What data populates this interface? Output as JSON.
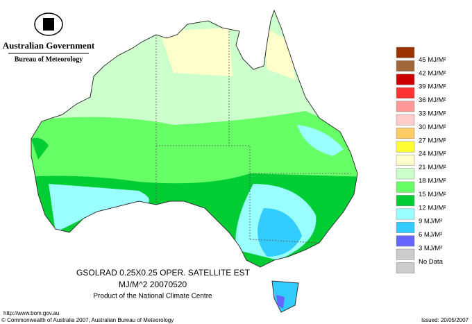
{
  "header": {
    "title": "Australian Government",
    "subtitle": "Bureau of Meteorology"
  },
  "map": {
    "title": "GSOLRAD    0.25X0.25  OPER. SATELLITE EST",
    "units_date": "MJ/M^2  20070520",
    "credit": "Product of the National Climate Centre"
  },
  "legend": {
    "colors": [
      "#993300",
      "#a0673a",
      "#cc0000",
      "#ff3333",
      "#ff9999",
      "#ffcccc",
      "#ffcc66",
      "#ffff33",
      "#ffffcc",
      "#ccffcc",
      "#66ff66",
      "#00cc33",
      "#99ffff",
      "#33ccff",
      "#6666ff",
      "#cccccc",
      "#cccccc"
    ],
    "labels": [
      "45 MJ/M²",
      "42 MJ/M²",
      "39 MJ/M²",
      "36 MJ/M²",
      "33 MJ/M²",
      "30 MJ/M²",
      "27 MJ/M²",
      "24 MJ/M²",
      "21 MJ/M²",
      "18 MJ/M²",
      "15 MJ/M²",
      "12 MJ/M²",
      "9 MJ/M²",
      "6 MJ/M²",
      "3 MJ/M²",
      "No Data"
    ]
  },
  "footer": {
    "url": "http://www.bom.gov.au",
    "copyright": "© Commonwealth of Australia 2007, Australian Bureau of Meteorology",
    "issued": "Issued: 20/05/2007"
  }
}
